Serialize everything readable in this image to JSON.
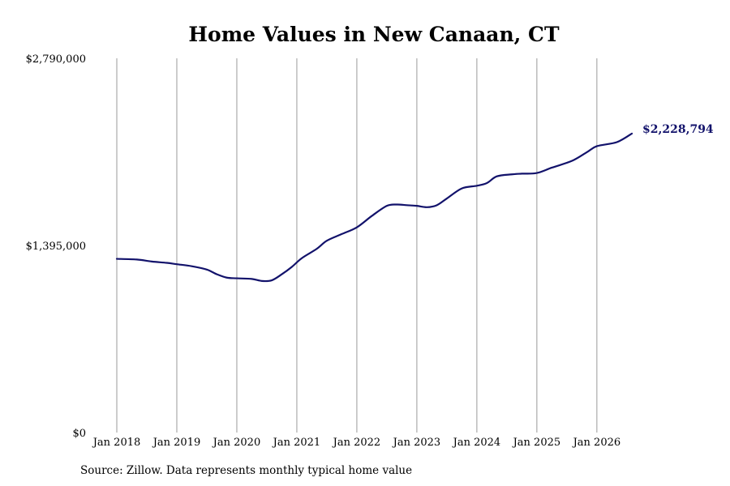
{
  "chart_data": {
    "type": "line",
    "title": "Home Values in New Canaan, CT",
    "xlabel": "",
    "ylabel": "",
    "ylim": [
      0,
      2790000
    ],
    "y_ticks": [
      "$0",
      "$1,395,000",
      "$2,790,000"
    ],
    "y_tick_values": [
      0,
      1395000,
      2790000
    ],
    "x_ticks": [
      "Jan 2018",
      "Jan 2019",
      "Jan 2020",
      "Jan 2021",
      "Jan 2022",
      "Jan 2023",
      "Jan 2024",
      "Jan 2025",
      "Jan 2026"
    ],
    "x_tick_values": [
      2018.0,
      2019.0,
      2020.0,
      2021.0,
      2022.0,
      2023.0,
      2024.0,
      2025.0,
      2026.0
    ],
    "xlim": [
      2018.0,
      2026.583
    ],
    "grid": "vertical",
    "end_label": "$2,228,794",
    "line_color": "#12126b",
    "series": [
      {
        "x": [
          2018.0,
          2018.333,
          2018.583,
          2018.833,
          2019.0,
          2019.25,
          2019.5,
          2019.667,
          2019.833,
          2020.0,
          2020.25,
          2020.417,
          2020.583,
          2020.75,
          2020.917,
          2021.083,
          2021.333,
          2021.5,
          2021.75,
          2022.0,
          2022.25,
          2022.5,
          2022.667,
          2022.833,
          2023.0,
          2023.167,
          2023.333,
          2023.5,
          2023.75,
          2024.0,
          2024.167,
          2024.333,
          2024.583,
          2024.75,
          2025.0,
          2025.25,
          2025.583,
          2025.833,
          2026.0,
          2026.333,
          2026.583
        ],
        "y": [
          1295000,
          1290000,
          1275000,
          1265000,
          1255000,
          1240000,
          1215000,
          1180000,
          1155000,
          1150000,
          1145000,
          1130000,
          1135000,
          1180000,
          1235000,
          1300000,
          1370000,
          1430000,
          1480000,
          1530000,
          1615000,
          1690000,
          1700000,
          1695000,
          1690000,
          1680000,
          1695000,
          1745000,
          1820000,
          1840000,
          1860000,
          1910000,
          1925000,
          1930000,
          1935000,
          1975000,
          2025000,
          2090000,
          2135000,
          2165000,
          2228794
        ]
      }
    ]
  },
  "source_text": "Source: Zillow. Data represents monthly typical home value"
}
